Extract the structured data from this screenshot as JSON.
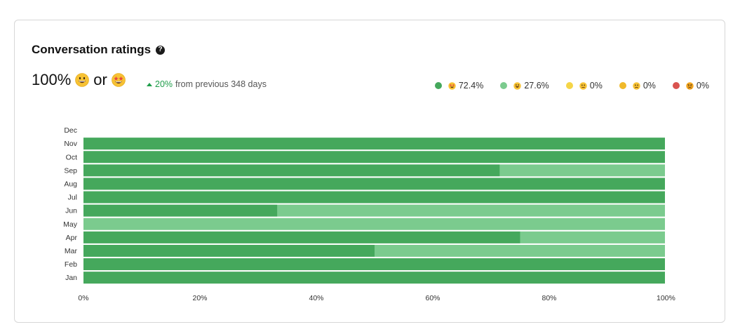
{
  "header": {
    "title": "Conversation ratings",
    "help_icon_glyph": "?"
  },
  "summary": {
    "percent": "100%",
    "conjunction": "or",
    "first_emoji": "grinning-face-icon",
    "second_emoji": "star-struck-face-icon"
  },
  "trend": {
    "direction": "up",
    "value": "20%",
    "label": "from previous 348 days",
    "color": "#1f9d4a"
  },
  "legend": [
    {
      "emoji": "star-struck-face-icon",
      "value": "72.4%",
      "color": "#45a85c"
    },
    {
      "emoji": "grinning-face-icon",
      "value": "27.6%",
      "color": "#7bcb8e"
    },
    {
      "emoji": "neutral-face-icon",
      "value": "0%",
      "color": "#f5d547"
    },
    {
      "emoji": "slightly-frowning-face-icon",
      "value": "0%",
      "color": "#f0b92a"
    },
    {
      "emoji": "angry-face-icon",
      "value": "0%",
      "color": "#d9534f"
    }
  ],
  "chart_data": {
    "type": "bar",
    "orientation": "horizontal",
    "stacked": true,
    "categories": [
      "Dec",
      "Nov",
      "Oct",
      "Sep",
      "Aug",
      "Jul",
      "Jun",
      "May",
      "Apr",
      "Mar",
      "Feb",
      "Jan"
    ],
    "series": [
      {
        "color": "#45a85c",
        "values": [
          0,
          100,
          100,
          71.5,
          100,
          100,
          33.3,
          0,
          75,
          50,
          100,
          100
        ]
      },
      {
        "color": "#7bcb8e",
        "values": [
          0,
          0,
          0,
          28.5,
          0,
          0,
          66.7,
          100,
          25,
          50,
          0,
          0
        ]
      }
    ],
    "xlim": [
      0,
      100
    ],
    "xticks": [
      "0%",
      "20%",
      "40%",
      "60%",
      "80%",
      "100%"
    ],
    "grid": false
  }
}
